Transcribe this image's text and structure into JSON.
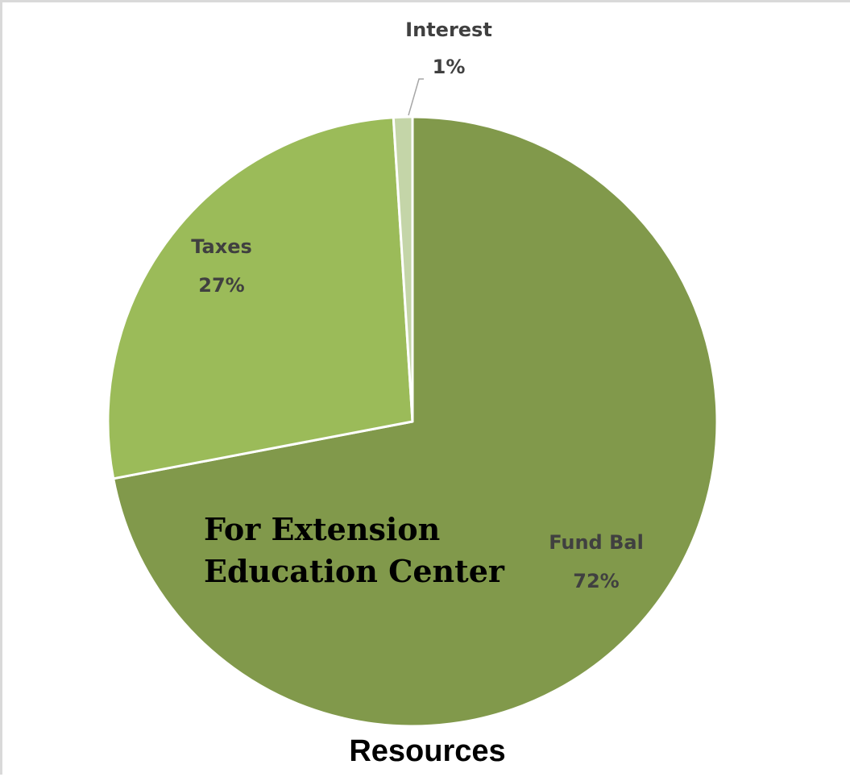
{
  "chart_data": {
    "type": "pie",
    "title": "Resources",
    "slices": [
      {
        "label": "Fund Bal",
        "value": 72,
        "percent_label": "72%",
        "color": "#81994b"
      },
      {
        "label": "Taxes",
        "value": 27,
        "percent_label": "27%",
        "color": "#9bbb59"
      },
      {
        "label": "Interest",
        "value": 1,
        "percent_label": "1%",
        "color": "#c4d5a8"
      }
    ],
    "slice_border_color": "#ffffff",
    "leader_line_color": "#a6a6a6",
    "label_color": "#404040"
  },
  "overlay": {
    "line1": "For Extension",
    "line2": "Education Center"
  }
}
